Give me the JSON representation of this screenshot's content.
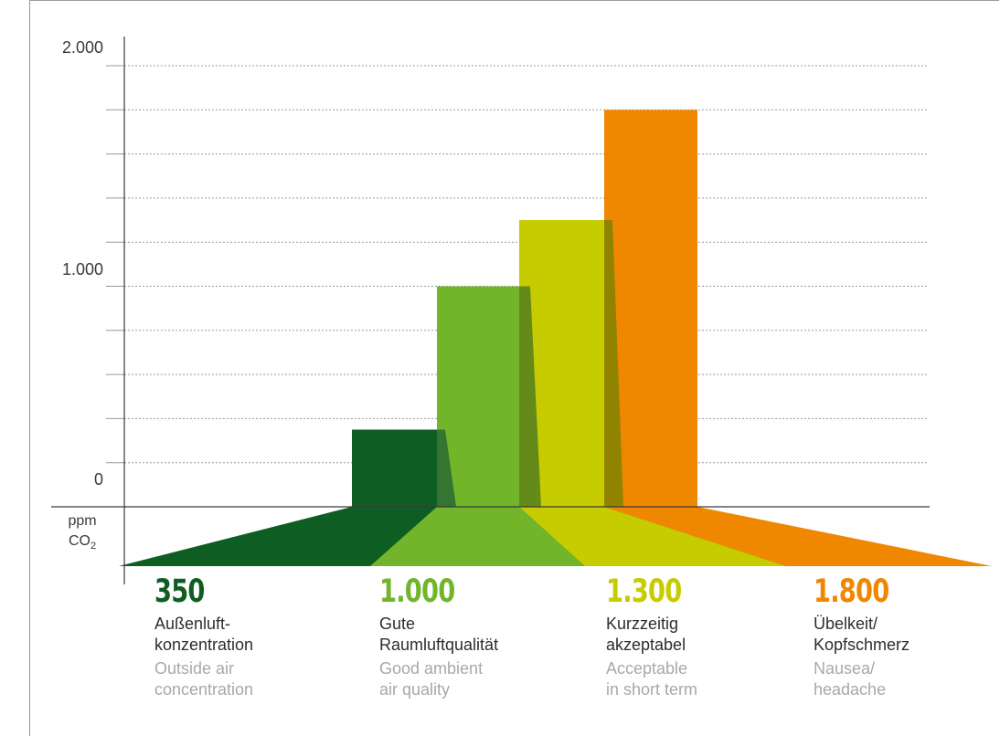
{
  "chart_data": {
    "type": "bar",
    "y_tick_labels": [
      "2.000",
      "1.000",
      "0"
    ],
    "ylim": [
      0,
      2000
    ],
    "unit_label": {
      "line1": "ppm",
      "line2": "CO",
      "sub": "2"
    },
    "grid": true,
    "categories": [
      {
        "value_label": "350",
        "de": "Außenluft-\nkonzentration",
        "en": "Outside air\nconcentration",
        "color": "#0e5e23"
      },
      {
        "value_label": "1.000",
        "de": "Gute\nRaumluftqualität",
        "en": "Good ambient\nair quality",
        "color": "#72b42a"
      },
      {
        "value_label": "1.300",
        "de": "Kurzzeitig\nakzeptabel",
        "en": "Acceptable\nin short term",
        "color": "#c6cc00"
      },
      {
        "value_label": "1.800",
        "de": "Übelkeit/\nKopfschmerz",
        "en": "Nausea/\nheadache",
        "color": "#f08700"
      }
    ],
    "values": [
      350,
      1000,
      1300,
      1800
    ]
  }
}
